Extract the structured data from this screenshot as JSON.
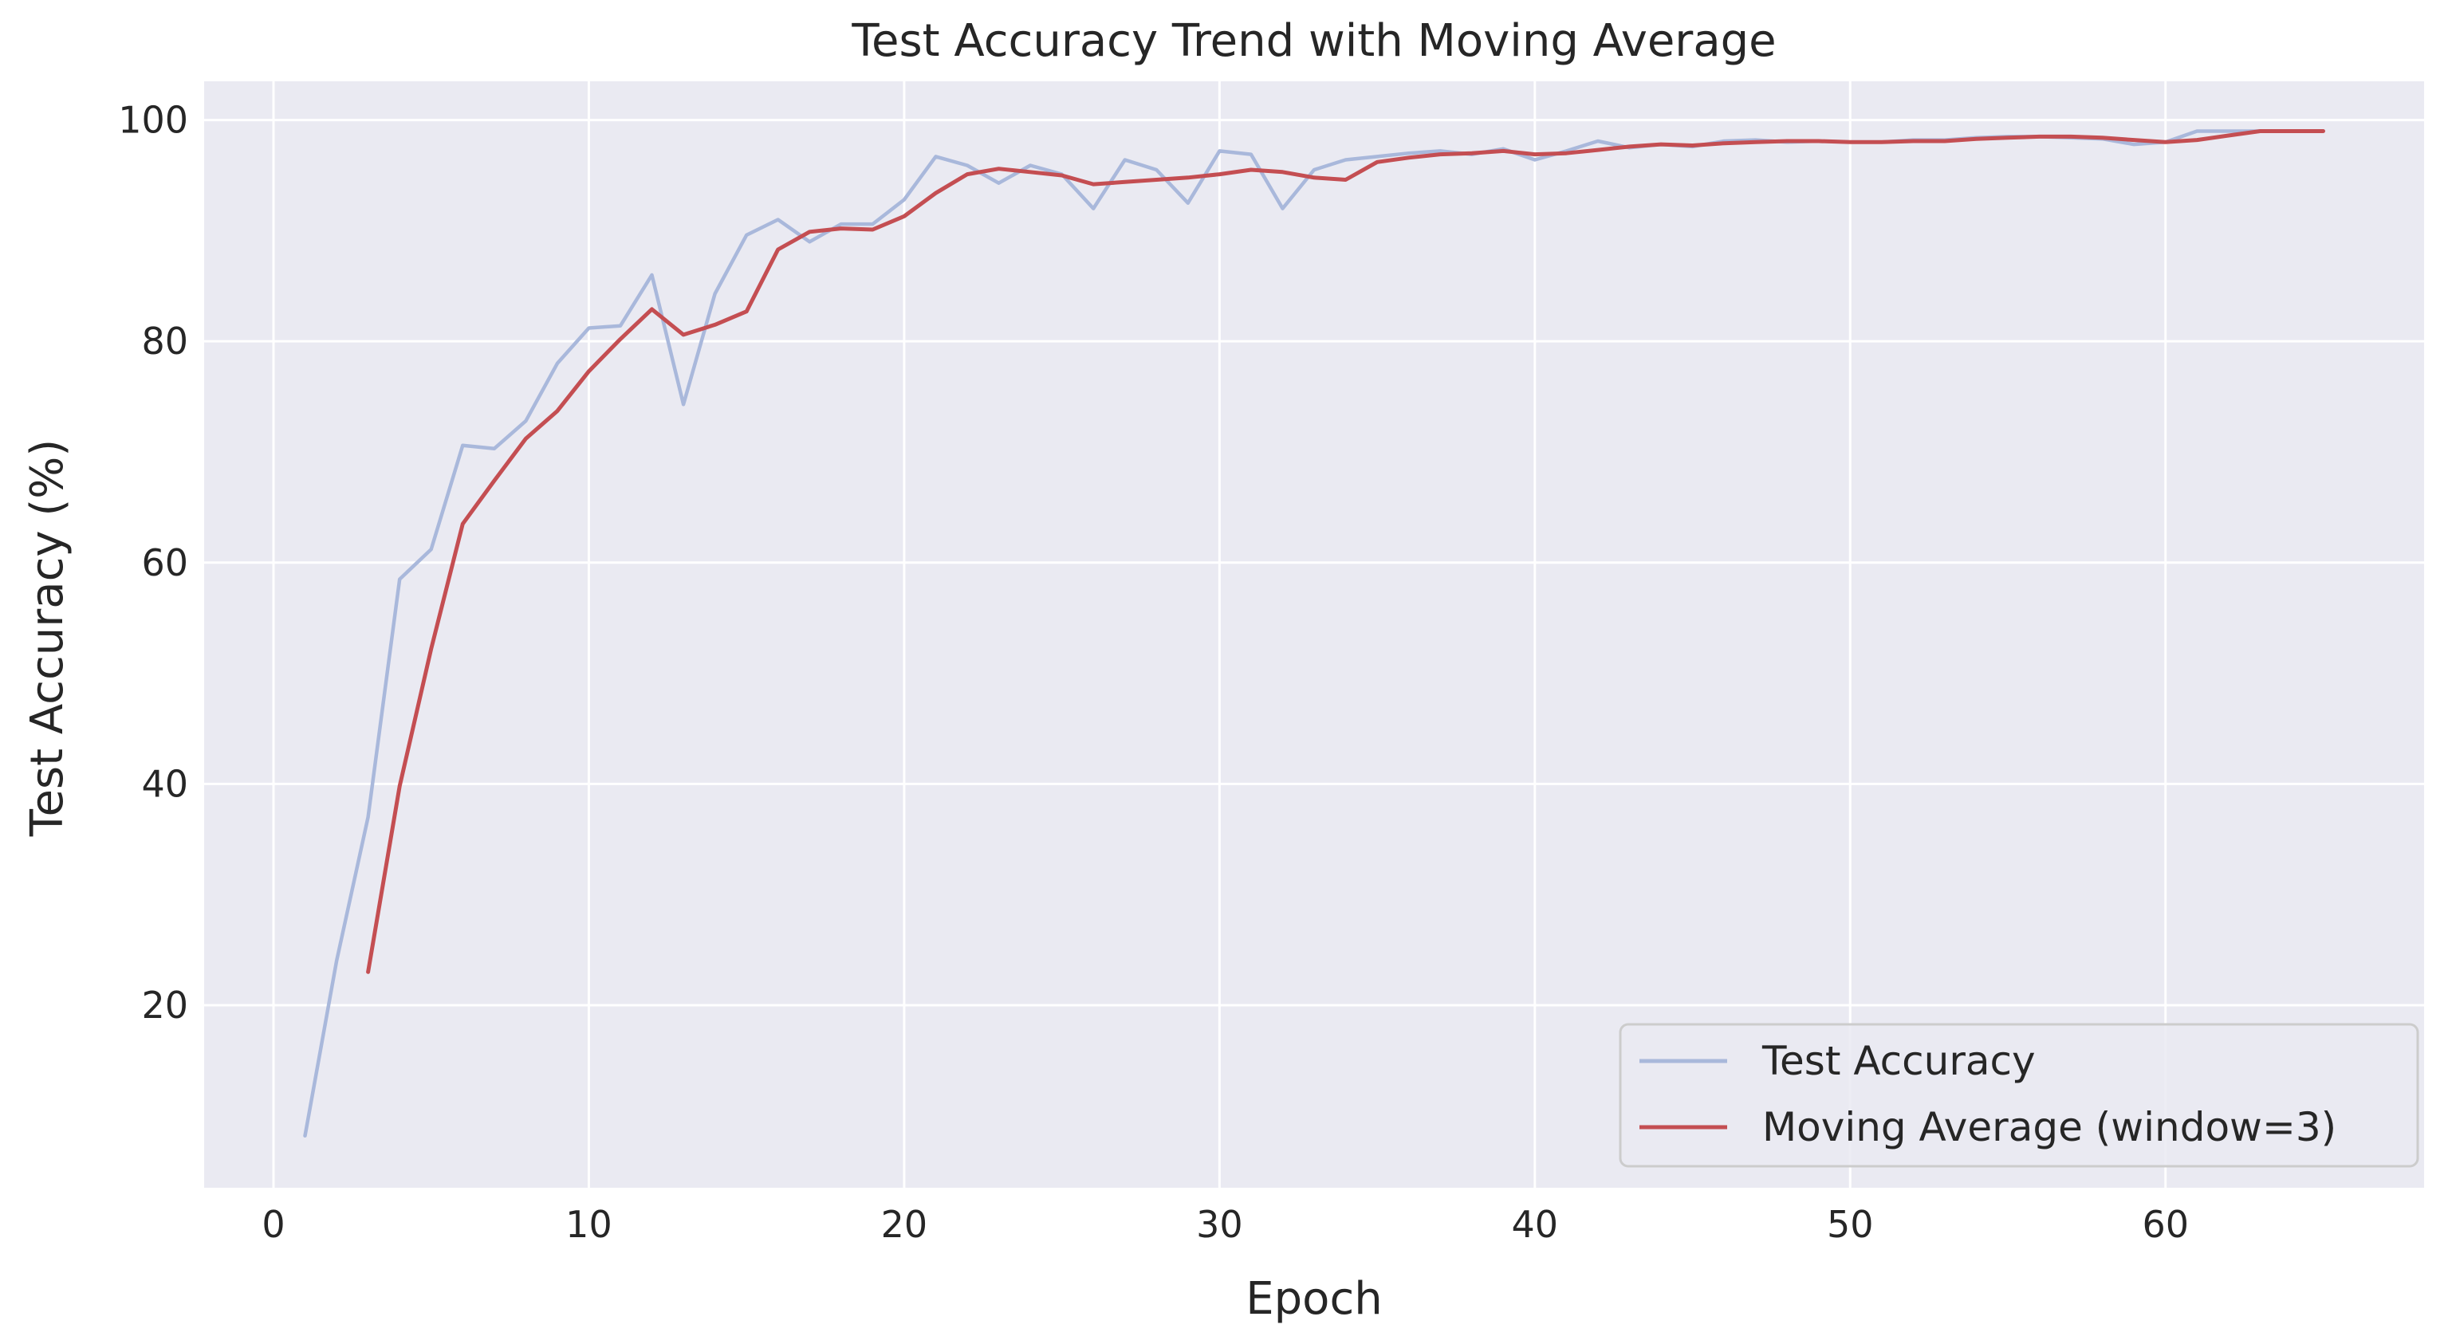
{
  "chart_data": {
    "type": "line",
    "title": "Test Accuracy Trend with Moving Average",
    "xlabel": "Epoch",
    "ylabel": "Test Accuracy (%)",
    "xlim": [
      -2.2,
      68.2
    ],
    "ylim": [
      3.5,
      103.5
    ],
    "x_ticks": [
      0,
      10,
      20,
      30,
      40,
      50,
      60
    ],
    "y_ticks": [
      20,
      40,
      60,
      80,
      100
    ],
    "grid": true,
    "legend_position": "lower right",
    "series": [
      {
        "name": "Test Accuracy",
        "color": "#a9b8db",
        "x": [
          1,
          2,
          3,
          4,
          5,
          6,
          7,
          8,
          9,
          10,
          11,
          12,
          13,
          14,
          15,
          16,
          17,
          18,
          19,
          20,
          21,
          22,
          23,
          24,
          25,
          26,
          27,
          28,
          29,
          30,
          31,
          32,
          33,
          34,
          35,
          36,
          37,
          38,
          39,
          40,
          41,
          42,
          43,
          44,
          45,
          46,
          47,
          48,
          49,
          50,
          51,
          52,
          53,
          54,
          55,
          56,
          57,
          58,
          59,
          60,
          61,
          62,
          63,
          64,
          65
        ],
        "values": [
          8.2,
          24.0,
          37.0,
          58.5,
          61.2,
          70.6,
          70.3,
          72.8,
          78.0,
          81.2,
          81.4,
          86.0,
          74.3,
          84.3,
          89.6,
          91.0,
          89.0,
          90.6,
          90.6,
          92.8,
          96.7,
          95.9,
          94.3,
          95.9,
          95.1,
          92.0,
          96.4,
          95.5,
          92.5,
          97.2,
          96.9,
          92.0,
          95.5,
          96.4,
          96.7,
          97.0,
          97.2,
          96.9,
          97.4,
          96.4,
          97.2,
          98.1,
          97.5,
          97.8,
          97.6,
          98.1,
          98.2,
          98.0,
          98.1,
          98.0,
          98.0,
          98.2,
          98.2,
          98.4,
          98.5,
          98.5,
          98.4,
          98.3,
          97.8,
          98.0,
          99.0,
          99.0,
          99.0,
          99.0,
          99.0
        ]
      },
      {
        "name": "Moving Average (window=3)",
        "color": "#c44e52",
        "x": [
          3,
          4,
          5,
          6,
          7,
          8,
          9,
          10,
          11,
          12,
          13,
          14,
          15,
          16,
          17,
          18,
          19,
          20,
          21,
          22,
          23,
          24,
          25,
          26,
          27,
          28,
          29,
          30,
          31,
          32,
          33,
          34,
          35,
          36,
          37,
          38,
          39,
          40,
          41,
          42,
          43,
          44,
          45,
          46,
          47,
          48,
          49,
          50,
          51,
          52,
          53,
          54,
          55,
          56,
          57,
          58,
          59,
          60,
          61,
          62,
          63,
          64,
          65
        ],
        "values": [
          23.0,
          39.8,
          52.2,
          63.5,
          67.4,
          71.2,
          73.7,
          77.3,
          80.2,
          82.9,
          80.6,
          81.5,
          82.7,
          88.3,
          89.9,
          90.2,
          90.1,
          91.3,
          93.4,
          95.1,
          95.6,
          95.3,
          95.0,
          94.2,
          94.4,
          94.6,
          94.8,
          95.1,
          95.5,
          95.3,
          94.8,
          94.6,
          96.2,
          96.6,
          96.9,
          97.0,
          97.2,
          96.9,
          97.0,
          97.3,
          97.6,
          97.8,
          97.7,
          97.9,
          98.0,
          98.1,
          98.1,
          98.0,
          98.0,
          98.1,
          98.1,
          98.3,
          98.4,
          98.5,
          98.5,
          98.4,
          98.2,
          98.0,
          98.2,
          98.6,
          99.0,
          99.0,
          99.0
        ]
      }
    ]
  }
}
